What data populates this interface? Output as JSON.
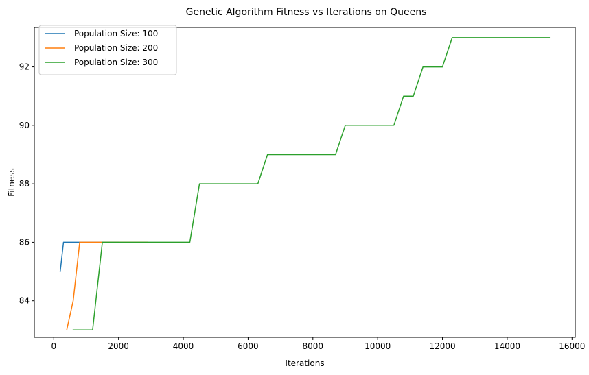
{
  "chart_data": {
    "type": "line",
    "title": "Genetic Algorithm Fitness vs Iterations on Queens",
    "xlabel": "Iterations",
    "ylabel": "Fitness",
    "xlim": [
      -600,
      16100
    ],
    "ylim": [
      82.75,
      93.35
    ],
    "xticks": [
      0,
      2000,
      4000,
      6000,
      8000,
      10000,
      12000,
      14000,
      16000
    ],
    "yticks": [
      84,
      86,
      88,
      90,
      92
    ],
    "grid": false,
    "legend": "top-left",
    "series": [
      {
        "name": "Population Size: 100",
        "color": "#1f77b4",
        "points": [
          [
            200,
            85
          ],
          [
            300,
            86
          ],
          [
            2000,
            86
          ]
        ]
      },
      {
        "name": "Population Size: 200",
        "color": "#ff7f0e",
        "points": [
          [
            400,
            83
          ],
          [
            600,
            84
          ],
          [
            800,
            86
          ],
          [
            2900,
            86
          ]
        ]
      },
      {
        "name": "Population Size: 300",
        "color": "#2ca02c",
        "points": [
          [
            600,
            83
          ],
          [
            1200,
            83
          ],
          [
            1500,
            86
          ],
          [
            4200,
            86
          ],
          [
            4500,
            88
          ],
          [
            6300,
            88
          ],
          [
            6600,
            89
          ],
          [
            8700,
            89
          ],
          [
            9000,
            90
          ],
          [
            10500,
            90
          ],
          [
            10800,
            91
          ],
          [
            11100,
            91
          ],
          [
            11400,
            92
          ],
          [
            12000,
            92
          ],
          [
            12300,
            93
          ],
          [
            15300,
            93
          ]
        ]
      }
    ]
  }
}
